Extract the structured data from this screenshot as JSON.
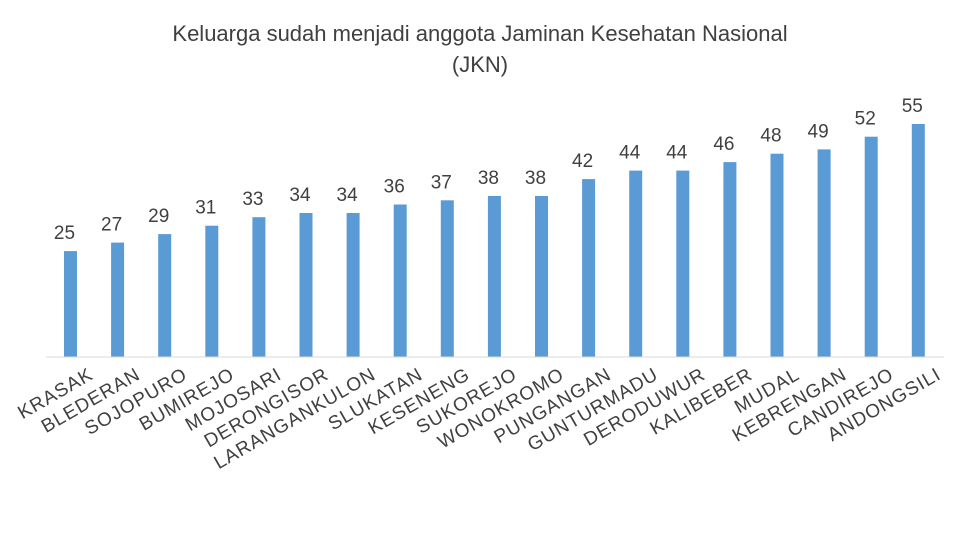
{
  "chart_data": {
    "type": "bar",
    "title_lines": [
      "Keluarga sudah menjadi anggota Jaminan Kesehatan Nasional",
      "(JKN)"
    ],
    "categories": [
      "KRASAK",
      "BLEDERAN",
      "SOJOPURO",
      "BUMIREJO",
      "MOJOSARI",
      "DERONGISOR",
      "LARANGANKULON",
      "SLUKATAN",
      "KESENENG",
      "SUKOREJO",
      "WONOKROMO",
      "PUNGANGAN",
      "GUNTURMADU",
      "DERODUWUR",
      "KALIBEBER",
      "MUDAL",
      "KEBRENGAN",
      "CANDIREJO",
      "ANDONGSILI"
    ],
    "values": [
      25,
      27,
      29,
      31,
      33,
      34,
      34,
      36,
      37,
      38,
      38,
      42,
      44,
      44,
      46,
      48,
      49,
      52,
      55
    ],
    "ylim": [
      0,
      55
    ],
    "xlabel": "",
    "ylabel": "",
    "grid": false,
    "bar_color": "#5b9bd5",
    "text_color": "#404040",
    "axis_color": "#d9d9d9"
  }
}
